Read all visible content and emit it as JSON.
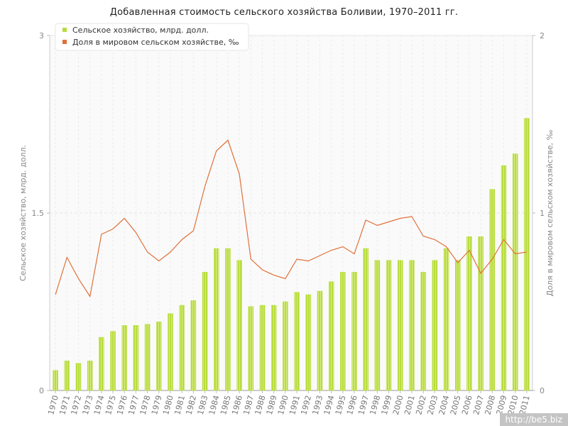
{
  "title": "Добавленная стоимость сельского хозяйства Боливии, 1970–2011 гг.",
  "watermark": "http://be5.biz",
  "colors": {
    "bar": "#b8dc3c",
    "bar_stripe": "#d8ec8a",
    "line": "#e0703a",
    "grid": "#e4e4e4",
    "axis_text": "#888888"
  },
  "chart_data": {
    "type": "bar",
    "categories": [
      "1970",
      "1971",
      "1972",
      "1973",
      "1974",
      "1975",
      "1976",
      "1977",
      "1978",
      "1979",
      "1980",
      "1981",
      "1982",
      "1983",
      "1984",
      "1985",
      "1986",
      "1987",
      "1988",
      "1989",
      "1990",
      "1991",
      "1992",
      "1993",
      "1994",
      "1995",
      "1996",
      "1997",
      "1998",
      "1999",
      "2000",
      "2001",
      "2002",
      "2003",
      "2004",
      "2005",
      "2006",
      "2007",
      "2008",
      "2009",
      "2010",
      "2011"
    ],
    "series": [
      {
        "name": "Сельское хозяйство, млрд. долл.",
        "type": "bar",
        "axis": "left",
        "values": [
          0.17,
          0.25,
          0.23,
          0.25,
          0.45,
          0.5,
          0.55,
          0.55,
          0.56,
          0.58,
          0.65,
          0.72,
          0.76,
          1.0,
          1.2,
          1.2,
          1.1,
          0.71,
          0.72,
          0.72,
          0.75,
          0.83,
          0.81,
          0.84,
          0.92,
          1.0,
          1.0,
          1.2,
          1.1,
          1.1,
          1.1,
          1.1,
          1.0,
          1.1,
          1.2,
          1.1,
          1.3,
          1.3,
          1.7,
          1.9,
          2.0,
          2.3
        ]
      },
      {
        "name": "Доля в мировом сельском хозяйстве, ‰",
        "type": "line",
        "axis": "right",
        "values": [
          0.54,
          0.75,
          0.63,
          0.53,
          0.88,
          0.91,
          0.97,
          0.89,
          0.78,
          0.73,
          0.78,
          0.85,
          0.9,
          1.15,
          1.35,
          1.41,
          1.22,
          0.74,
          0.68,
          0.65,
          0.63,
          0.74,
          0.73,
          0.76,
          0.79,
          0.81,
          0.77,
          0.96,
          0.93,
          0.95,
          0.97,
          0.98,
          0.87,
          0.85,
          0.81,
          0.72,
          0.79,
          0.66,
          0.74,
          0.85,
          0.77,
          0.78
        ]
      }
    ],
    "ylabel": "Сельское хозяйство, млрд. долл.",
    "y2label": "Доля в мировом сельском хозяйстве, ‰",
    "ylim": [
      0,
      3
    ],
    "y2lim": [
      0,
      2
    ],
    "yticks": [
      "0",
      "1.5",
      "3"
    ],
    "y2ticks": [
      "0",
      "1",
      "2"
    ],
    "grid": true,
    "legend_position": "top-left"
  }
}
